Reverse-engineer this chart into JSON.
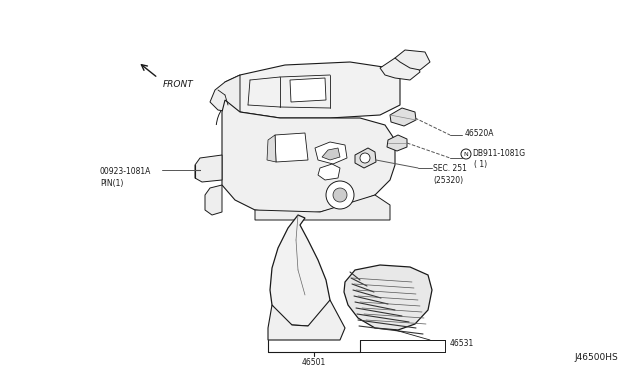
{
  "bg_color": "#ffffff",
  "fig_width": 6.4,
  "fig_height": 3.72,
  "dpi": 100,
  "lc": "#1a1a1a",
  "lc_light": "#555555",
  "lc_dashed": "#666666",
  "labels": {
    "front": "FRONT",
    "p46520A": "46520A",
    "pNDB911_main": "DB911-1081G",
    "pNDB911_sub": "( 1)",
    "pNDB911_N": "N",
    "pSEC251": "SEC. 251\n(25320)",
    "p00923": "00923-1081A\nPIN(1)",
    "p46531": "46531",
    "p46501": "46501",
    "diagram_id": "J46500HS"
  },
  "fs": 5.5,
  "fs_id": 6.5
}
